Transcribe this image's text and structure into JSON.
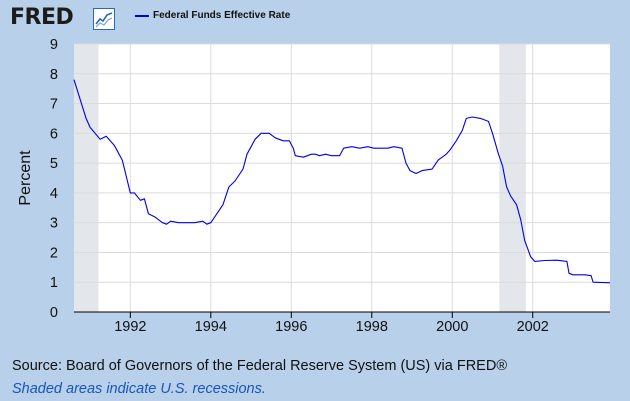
{
  "header": {
    "logo_text": "FRED",
    "logo_mark_icon": "fred-trend-chart-icon",
    "legend_label": "Federal Funds Effective Rate",
    "legend_color": "#0000ee"
  },
  "footer": {
    "source_text": "Source: Board of Governors of the Federal Reserve System (US) via FRED®",
    "note_text": "Shaded areas indicate U.S. recessions."
  },
  "chart_data": {
    "type": "line",
    "title": "",
    "xlabel": "",
    "ylabel": "Percent",
    "xlim": [
      1990.6,
      2003.92
    ],
    "ylim": [
      0,
      9
    ],
    "xticks": [
      1992,
      1994,
      1996,
      1998,
      2000,
      2002
    ],
    "xtick_labels": [
      "1992",
      "1994",
      "1996",
      "1998",
      "2000",
      "2002"
    ],
    "yticks": [
      0,
      1,
      2,
      3,
      4,
      5,
      6,
      7,
      8,
      9
    ],
    "ytick_labels": [
      "0",
      "1",
      "2",
      "3",
      "4",
      "5",
      "6",
      "7",
      "8",
      "9"
    ],
    "grid": true,
    "background": "#ffffff",
    "recession_color": "#e3e6ea",
    "recessions": [
      [
        1990.58,
        1991.21
      ],
      [
        2001.17,
        2001.83
      ]
    ],
    "series": [
      {
        "name": "Federal Funds Effective Rate",
        "color": "#0000ee",
        "points": [
          [
            1990.6,
            7.8
          ],
          [
            1990.9,
            6.5
          ],
          [
            1991.0,
            6.2
          ],
          [
            1991.25,
            5.8
          ],
          [
            1991.4,
            5.9
          ],
          [
            1991.6,
            5.6
          ],
          [
            1991.8,
            5.1
          ],
          [
            1992.0,
            4.0
          ],
          [
            1992.1,
            4.0
          ],
          [
            1992.25,
            3.75
          ],
          [
            1992.35,
            3.8
          ],
          [
            1992.45,
            3.3
          ],
          [
            1992.6,
            3.2
          ],
          [
            1992.8,
            3.0
          ],
          [
            1992.9,
            2.95
          ],
          [
            1993.0,
            3.05
          ],
          [
            1993.2,
            3.0
          ],
          [
            1993.4,
            3.0
          ],
          [
            1993.6,
            3.0
          ],
          [
            1993.8,
            3.05
          ],
          [
            1993.9,
            2.95
          ],
          [
            1994.0,
            3.0
          ],
          [
            1994.15,
            3.3
          ],
          [
            1994.3,
            3.6
          ],
          [
            1994.45,
            4.2
          ],
          [
            1994.6,
            4.4
          ],
          [
            1994.8,
            4.8
          ],
          [
            1994.9,
            5.3
          ],
          [
            1995.1,
            5.8
          ],
          [
            1995.25,
            6.0
          ],
          [
            1995.45,
            6.0
          ],
          [
            1995.6,
            5.85
          ],
          [
            1995.8,
            5.75
          ],
          [
            1995.95,
            5.75
          ],
          [
            1996.05,
            5.5
          ],
          [
            1996.1,
            5.25
          ],
          [
            1996.3,
            5.2
          ],
          [
            1996.5,
            5.3
          ],
          [
            1996.6,
            5.3
          ],
          [
            1996.7,
            5.25
          ],
          [
            1996.85,
            5.3
          ],
          [
            1997.0,
            5.25
          ],
          [
            1997.2,
            5.25
          ],
          [
            1997.3,
            5.5
          ],
          [
            1997.5,
            5.55
          ],
          [
            1997.7,
            5.5
          ],
          [
            1997.9,
            5.55
          ],
          [
            1998.05,
            5.5
          ],
          [
            1998.2,
            5.5
          ],
          [
            1998.4,
            5.5
          ],
          [
            1998.55,
            5.55
          ],
          [
            1998.75,
            5.5
          ],
          [
            1998.85,
            5.0
          ],
          [
            1998.95,
            4.75
          ],
          [
            1999.1,
            4.65
          ],
          [
            1999.25,
            4.75
          ],
          [
            1999.5,
            4.8
          ],
          [
            1999.65,
            5.1
          ],
          [
            1999.85,
            5.3
          ],
          [
            1999.95,
            5.45
          ],
          [
            2000.1,
            5.75
          ],
          [
            2000.25,
            6.1
          ],
          [
            2000.35,
            6.5
          ],
          [
            2000.5,
            6.55
          ],
          [
            2000.7,
            6.5
          ],
          [
            2000.9,
            6.4
          ],
          [
            2001.0,
            6.0
          ],
          [
            2001.15,
            5.3
          ],
          [
            2001.25,
            4.9
          ],
          [
            2001.35,
            4.2
          ],
          [
            2001.45,
            3.9
          ],
          [
            2001.6,
            3.6
          ],
          [
            2001.7,
            3.1
          ],
          [
            2001.8,
            2.4
          ],
          [
            2001.95,
            1.85
          ],
          [
            2002.05,
            1.7
          ],
          [
            2002.3,
            1.73
          ],
          [
            2002.6,
            1.74
          ],
          [
            2002.85,
            1.7
          ],
          [
            2002.9,
            1.3
          ],
          [
            2003.0,
            1.25
          ],
          [
            2003.3,
            1.25
          ],
          [
            2003.45,
            1.22
          ],
          [
            2003.5,
            1.0
          ],
          [
            2003.92,
            0.98
          ]
        ]
      }
    ]
  }
}
